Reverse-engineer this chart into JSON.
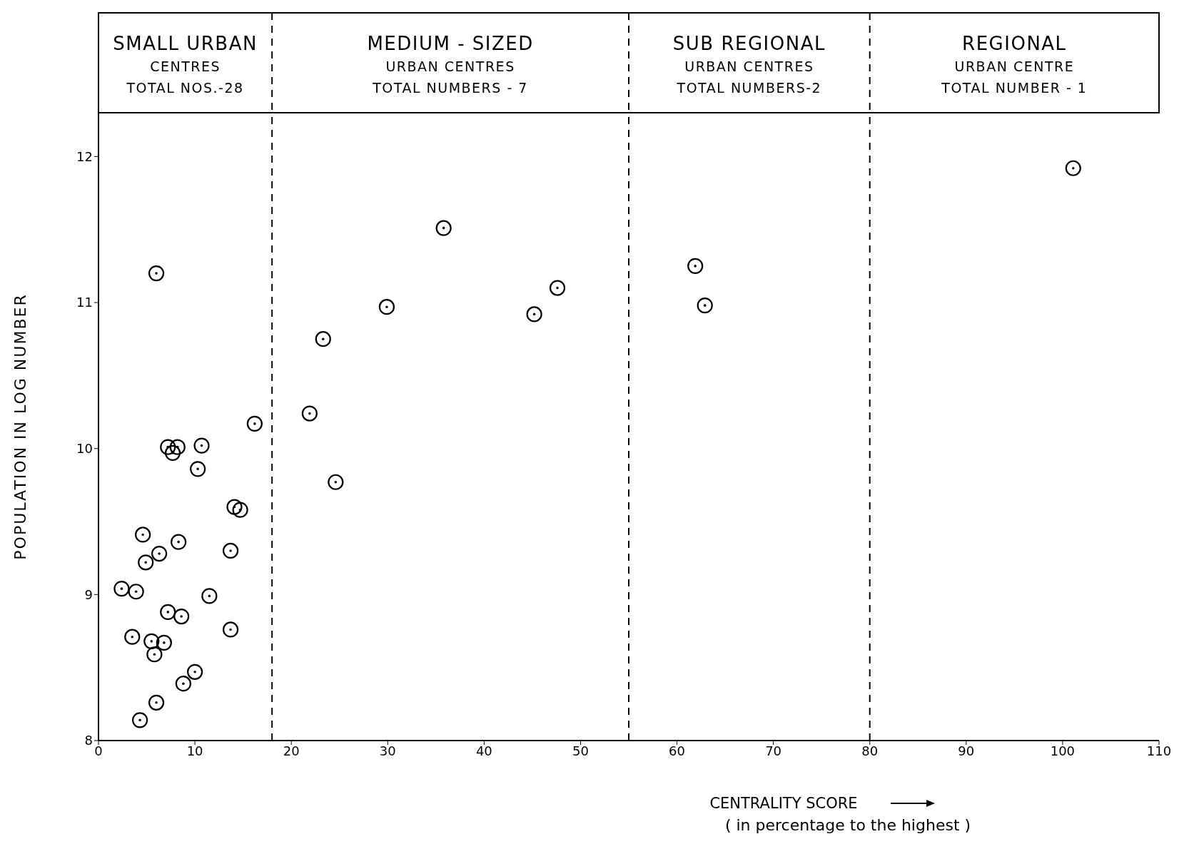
{
  "chart_data": {
    "type": "scatter",
    "xlabel": "CENTRALITY SCORE",
    "ylabel": "POPULATION IN LOG NUMBER",
    "annotations": [
      "SMALL URBAN\nCENTRES\nTOTAL NOS.-28",
      "MEDIUM - SIZED\nURBAN CENTRES\nTOTAL NUMBERS - 7",
      "SUB REGIONAL\nURBAN CENTRES\nTOTAL NUMBERS-2",
      "REGIONAL\nURBAN CENTRE\nTOTAL NUMBER - 1",
      "( in percentage to the highest )"
    ],
    "x": [
      6.0,
      35.8,
      101.1,
      61.9,
      62.9,
      29.9,
      45.2,
      47.6,
      23.3,
      21.9,
      24.6,
      16.2,
      7.2,
      8.2,
      7.7,
      10.7,
      10.3,
      14.1,
      14.7,
      4.6,
      6.3,
      4.9,
      8.3,
      13.7,
      2.4,
      3.9,
      11.5,
      7.2,
      8.6,
      13.7,
      3.5,
      5.5,
      6.8,
      5.8,
      10.0,
      8.8,
      6.0,
      4.3
    ],
    "values": [
      11.2,
      11.51,
      11.92,
      11.25,
      10.98,
      10.97,
      10.92,
      11.1,
      10.75,
      10.24,
      9.77,
      10.17,
      10.01,
      10.01,
      9.97,
      10.02,
      9.86,
      9.6,
      9.58,
      9.41,
      9.28,
      9.22,
      9.36,
      9.3,
      9.04,
      9.02,
      8.99,
      8.88,
      8.85,
      8.76,
      8.71,
      8.68,
      8.67,
      8.59,
      8.47,
      8.39,
      8.26,
      8.14
    ],
    "color": "#000000",
    "marker": "circle",
    "grid": false,
    "legend": false,
    "xlim": [
      0,
      110
    ],
    "xticks": [
      0,
      10,
      20,
      30,
      40,
      50,
      60,
      70,
      80,
      90,
      100,
      110
    ],
    "ylim": [
      8,
      12.3
    ],
    "yticks": [
      8,
      9,
      10,
      11,
      12
    ],
    "ref_lines": [
      {
        "axis": "x",
        "value": 18,
        "line_style": "dashed",
        "color": "#000000"
      },
      {
        "axis": "x",
        "value": 55,
        "line_style": "dashed",
        "color": "#000000"
      },
      {
        "axis": "x",
        "value": 80,
        "line_style": "dashed",
        "color": "#000000"
      }
    ]
  }
}
